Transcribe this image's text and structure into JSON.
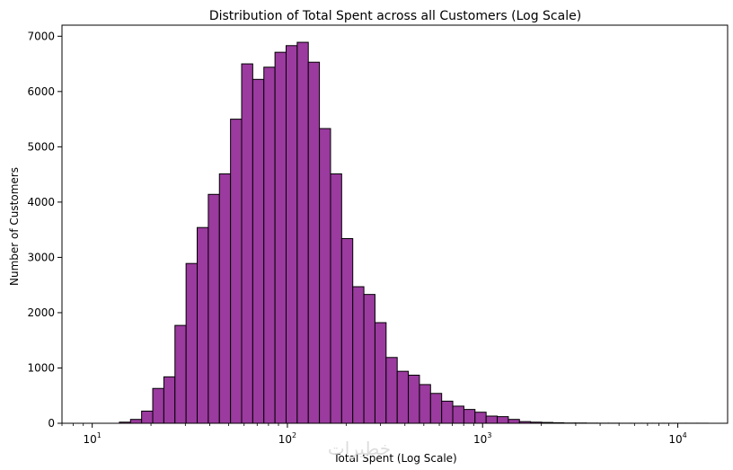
{
  "chart_data": {
    "type": "bar",
    "title": "Distribution of Total Spent across all Customers (Log Scale)",
    "xlabel": "Total Spent (Log Scale)",
    "ylabel": "Number of Customers",
    "x_scale": "log",
    "xlim": [
      7,
      18000
    ],
    "ylim": [
      0,
      7200
    ],
    "y_ticks": [
      0,
      1000,
      2000,
      3000,
      4000,
      5000,
      6000,
      7000
    ],
    "x_ticks": [
      {
        "value": 10,
        "base": "10",
        "exp": "1"
      },
      {
        "value": 100,
        "base": "10",
        "exp": "2"
      },
      {
        "value": 1000,
        "base": "10",
        "exp": "3"
      },
      {
        "value": 10000,
        "base": "10",
        "exp": "4"
      }
    ],
    "grid": false,
    "bin_edges": [
      9.3,
      10.6,
      12.09,
      13.78,
      15.71,
      17.91,
      20.42,
      23.28,
      26.54,
      30.26,
      34.5,
      39.33,
      44.84,
      51.12,
      58.28,
      66.44,
      75.75,
      86.37,
      98.46,
      112.25,
      127.97,
      145.9,
      166.34,
      189.64,
      216.2,
      246.49,
      281.02,
      320.38,
      365.26,
      416.42,
      474.75,
      541.25,
      617.06,
      703.5,
      802.05,
      914.39,
      1042.47,
      1188.49,
      1354.97,
      1544.76,
      1761.15,
      2007.83,
      2289.08,
      2609.71,
      2975.26,
      3392.0,
      3867.17,
      4408.85,
      5026.4,
      5730.5,
      6533.16,
      7448.3,
      8491.58,
      9681.0,
      11037.0,
      12583.0,
      14345.0
    ],
    "values": [
      0,
      0,
      0,
      20,
      70,
      220,
      630,
      840,
      1770,
      2890,
      3540,
      4140,
      4510,
      5500,
      6500,
      6220,
      6440,
      6710,
      6830,
      6890,
      6530,
      5330,
      4510,
      3340,
      2470,
      2330,
      1820,
      1190,
      940,
      870,
      700,
      540,
      400,
      310,
      250,
      200,
      130,
      120,
      70,
      30,
      20,
      15,
      10,
      5,
      5,
      3,
      2,
      2,
      1,
      1,
      1,
      1,
      1,
      1,
      1,
      1
    ],
    "bar_color": "#9b3a9f",
    "edge_color": "#000000"
  },
  "watermark": "خطيرات"
}
